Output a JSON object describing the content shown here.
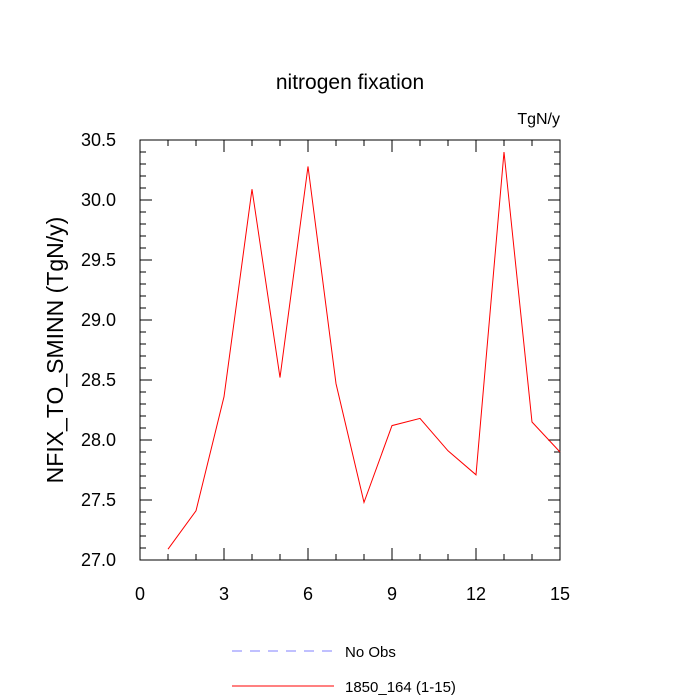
{
  "chart_data": {
    "type": "line",
    "title": "nitrogen fixation",
    "units_label": "TgN/y",
    "xlabel": "",
    "ylabel": "NFIX_TO_SMINN  (TgN/y)",
    "xlim": [
      0,
      15
    ],
    "ylim": [
      27.0,
      30.5
    ],
    "x_ticks": [
      0,
      3,
      6,
      9,
      12,
      15
    ],
    "x_tick_labels": [
      "0",
      "3",
      "6",
      "9",
      "12",
      "15"
    ],
    "y_ticks": [
      27.0,
      27.5,
      28.0,
      28.5,
      29.0,
      29.5,
      30.0,
      30.5
    ],
    "y_tick_labels": [
      "27.0",
      "27.5",
      "28.0",
      "28.5",
      "29.0",
      "29.5",
      "30.0",
      "30.5"
    ],
    "grid": false,
    "legend_position": "bottom",
    "series": [
      {
        "name": "1850_164 (1-15)",
        "color": "#ff0000",
        "style": "solid",
        "x": [
          1,
          2,
          3,
          4,
          5,
          6,
          7,
          8,
          9,
          10,
          11,
          12,
          13,
          14,
          15
        ],
        "y": [
          27.09,
          27.41,
          28.36,
          30.09,
          28.52,
          30.28,
          28.47,
          27.48,
          28.12,
          28.18,
          27.91,
          27.71,
          30.4,
          28.15,
          27.9
        ]
      }
    ],
    "legend": [
      {
        "label": "No Obs",
        "color": "#8080ff",
        "style": "dashed"
      },
      {
        "label": "1850_164 (1-15)",
        "color": "#ff0000",
        "style": "solid"
      }
    ]
  }
}
